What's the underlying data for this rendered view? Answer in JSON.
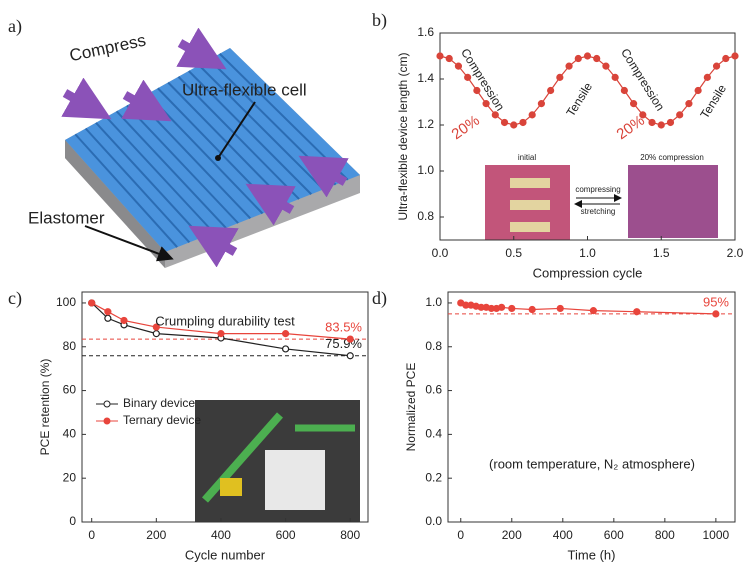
{
  "diagram": {
    "label": "a)",
    "labels": [
      "Compress",
      "Ultra-flexible cell",
      "Elastomer"
    ]
  },
  "chart_data": [
    {
      "type": "line",
      "panel_label": "b)",
      "y_label": "Ultra-flexible device length (cm)",
      "x_label": "Compression cycle",
      "x": [
        0,
        0.0625,
        0.125,
        0.1875,
        0.25,
        0.3125,
        0.375,
        0.4375,
        0.5,
        0.5625,
        0.625,
        0.6875,
        0.75,
        0.8125,
        0.875,
        0.9375,
        1,
        1.0625,
        1.125,
        1.1875,
        1.25,
        1.3125,
        1.375,
        1.4375,
        1.5,
        1.5625,
        1.625,
        1.6875,
        1.75,
        1.8125,
        1.875,
        1.9375,
        2
      ],
      "values": [
        1.5,
        1.489,
        1.456,
        1.407,
        1.35,
        1.293,
        1.244,
        1.211,
        1.2,
        1.211,
        1.244,
        1.293,
        1.35,
        1.407,
        1.456,
        1.489,
        1.5,
        1.489,
        1.456,
        1.407,
        1.35,
        1.293,
        1.244,
        1.211,
        1.2,
        1.211,
        1.244,
        1.293,
        1.35,
        1.407,
        1.456,
        1.489,
        1.5
      ],
      "color": "#d9443a",
      "xlim": [
        0,
        2
      ],
      "xticks": [
        {
          "value": 0,
          "label": "0.0"
        },
        0.5,
        {
          "value": 1,
          "label": "1.0"
        },
        1.5,
        {
          "value": 2,
          "label": "2.0"
        }
      ],
      "ylim": [
        0.7,
        1.6
      ],
      "yticks": [
        0.8,
        {
          "value": 1,
          "label": "1.0"
        },
        1.2,
        1.4,
        1.6
      ],
      "annotations": [
        "Compression",
        "20%",
        "Tensile",
        "Compression",
        "20%",
        "Tensile",
        "initial",
        "20% compression",
        "compressing",
        "stretching"
      ]
    },
    {
      "type": "line",
      "panel_label": "c)",
      "y_label": "PCE retention (%)",
      "x_label": "Cycle number",
      "x": [
        0,
        50,
        100,
        200,
        400,
        600,
        800
      ],
      "series": [
        {
          "name": "Binary device",
          "color": "#222222",
          "marker": "open",
          "values": [
            100,
            93,
            90,
            86,
            84,
            79,
            75.9
          ]
        },
        {
          "name": "Ternary device",
          "color": "#e8453c",
          "marker": "filled",
          "values": [
            100,
            96,
            92,
            89,
            86,
            86,
            83.5
          ]
        }
      ],
      "reference_lines": [
        {
          "value": 83.5,
          "color": "#e8453c",
          "label": "83.5%"
        },
        {
          "value": 75.9,
          "color": "#222222",
          "label": "75.9%"
        }
      ],
      "xlim": [
        -30,
        855
      ],
      "xticks": [
        0,
        200,
        400,
        600,
        800
      ],
      "ylim": [
        0,
        105
      ],
      "yticks": [
        0,
        20,
        40,
        60,
        80,
        100
      ],
      "annotations": [
        "Crumpling durability test"
      ]
    },
    {
      "type": "line",
      "panel_label": "d)",
      "y_label": "Normalized PCE",
      "x_label": "Time (h)",
      "x": [
        0,
        20,
        40,
        60,
        80,
        100,
        120,
        140,
        160,
        200,
        280,
        390,
        520,
        690,
        1000
      ],
      "values": [
        1.0,
        0.99,
        0.99,
        0.985,
        0.98,
        0.98,
        0.975,
        0.975,
        0.98,
        0.975,
        0.97,
        0.975,
        0.965,
        0.96,
        0.95
      ],
      "color": "#e8453c",
      "reference_lines": [
        {
          "value": 0.95,
          "color": "#e8453c",
          "label": "95%"
        }
      ],
      "xlim": [
        -50,
        1075
      ],
      "xticks": [
        0,
        200,
        400,
        600,
        800,
        1000
      ],
      "ylim": [
        0,
        1.05
      ],
      "yticks": [
        {
          "value": 0,
          "label": "0.0"
        },
        0.2,
        0.4,
        0.6,
        0.8,
        {
          "value": 1,
          "label": "1.0"
        }
      ],
      "annotations": [
        "(room temperature, N₂ atmosphere)"
      ]
    }
  ]
}
